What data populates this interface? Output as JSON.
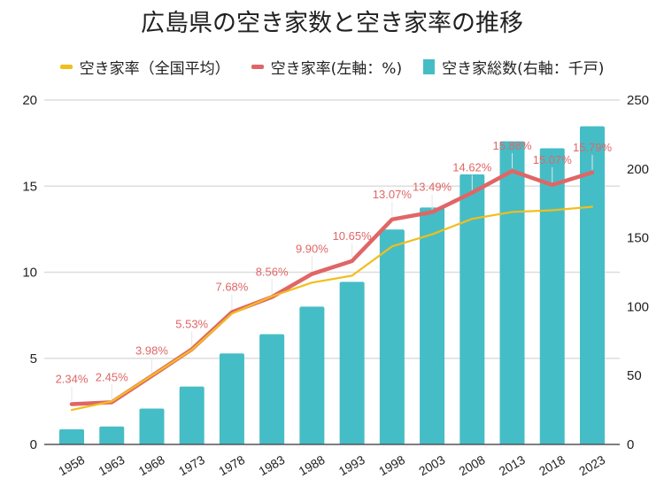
{
  "chart_data": {
    "type": "bar",
    "title": "広島県の空き家数と空き家率の推移",
    "categories": [
      "1958",
      "1963",
      "1968",
      "1973",
      "1978",
      "1983",
      "1988",
      "1993",
      "1998",
      "2003",
      "2008",
      "2013",
      "2018",
      "2023"
    ],
    "series": [
      {
        "name": "空き家率（全国平均）",
        "type": "line",
        "axis": "left",
        "color": "#F2BE1C",
        "values": [
          2.0,
          2.5,
          4.0,
          5.5,
          7.6,
          8.6,
          9.4,
          9.8,
          11.5,
          12.2,
          13.1,
          13.5,
          13.6,
          13.8
        ]
      },
      {
        "name": "空き家率(左軸：%)",
        "type": "line",
        "axis": "left",
        "color": "#E06666",
        "values": [
          2.34,
          2.45,
          3.98,
          5.53,
          7.68,
          8.56,
          9.9,
          10.65,
          13.07,
          13.49,
          14.62,
          15.88,
          15.07,
          15.79
        ],
        "data_labels": [
          "2.34%",
          "2.45%",
          "3.98%",
          "5.53%",
          "7.68%",
          "8.56%",
          "9.90%",
          "10.65%",
          "13.07%",
          "13.49%",
          "14.62%",
          "15.88%",
          "15.07%",
          "15.79%"
        ]
      },
      {
        "name": "空き家総数(右軸：千戸)",
        "type": "bar",
        "axis": "right",
        "color": "#45BDC6",
        "values": [
          11,
          13,
          26,
          42,
          66,
          80,
          100,
          118,
          156,
          172,
          196,
          220,
          215,
          231
        ]
      }
    ],
    "left_axis": {
      "min": 0,
      "max": 20,
      "ticks": [
        "0",
        "5",
        "10",
        "15",
        "20"
      ]
    },
    "right_axis": {
      "min": 0,
      "max": 250,
      "ticks": [
        "0",
        "50",
        "100",
        "150",
        "200",
        "250"
      ]
    },
    "xlabel": "",
    "ylabel": "",
    "grid": true,
    "legend_position": "top"
  },
  "legend": [
    {
      "label": "空き家率（全国平均）",
      "color": "#F2BE1C",
      "kind": "line"
    },
    {
      "label": "空き家率(左軸：%)",
      "color": "#E06666",
      "kind": "line"
    },
    {
      "label": "空き家総数(右軸：千戸)",
      "color": "#45BDC6",
      "kind": "box"
    }
  ]
}
